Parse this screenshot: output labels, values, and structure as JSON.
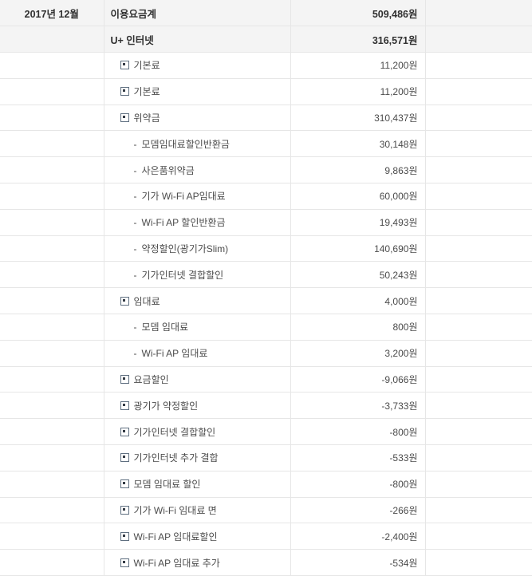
{
  "meta": {
    "period_label": "2017년 12월",
    "currency_suffix": "원"
  },
  "icons": {
    "tree_toggle": "expand-collapse-square",
    "dash": "-"
  },
  "colors": {
    "header_row_bg": "#f4f4f4",
    "row_bg": "#ffffff",
    "border": "#e6e6e6",
    "text": "#4b4b4b",
    "bold_text": "#303030",
    "tree_icon_border": "#5f6f80",
    "tree_icon_fill": "#333a44"
  },
  "table": {
    "columns": [
      "period",
      "item",
      "amount",
      "empty"
    ],
    "rows": [
      {
        "period": "2017년 12월",
        "label": "이용요금계",
        "value": "509,486원",
        "level": 0,
        "bold": true,
        "shaded": true
      },
      {
        "period": "",
        "label": "U+ 인터넷",
        "value": "316,571원",
        "level": 0,
        "bold": true,
        "shaded": true
      },
      {
        "period": "",
        "label": "기본료",
        "value": "11,200원",
        "level": 1,
        "bold": false,
        "shaded": false
      },
      {
        "period": "",
        "label": "기본료",
        "value": "11,200원",
        "level": 1,
        "bold": false,
        "shaded": false
      },
      {
        "period": "",
        "label": "위약금",
        "value": "310,437원",
        "level": 1,
        "bold": false,
        "shaded": false
      },
      {
        "period": "",
        "label": "모뎀임대료할인반환금",
        "value": "30,148원",
        "level": 2,
        "bold": false,
        "shaded": false
      },
      {
        "period": "",
        "label": "사은품위약금",
        "value": "9,863원",
        "level": 2,
        "bold": false,
        "shaded": false
      },
      {
        "period": "",
        "label": "기가 Wi-Fi AP임대료",
        "value": "60,000원",
        "level": 2,
        "bold": false,
        "shaded": false
      },
      {
        "period": "",
        "label": "Wi-Fi AP 할인반환금",
        "value": "19,493원",
        "level": 2,
        "bold": false,
        "shaded": false
      },
      {
        "period": "",
        "label": "약정할인(광기가Slim)",
        "value": "140,690원",
        "level": 2,
        "bold": false,
        "shaded": false
      },
      {
        "period": "",
        "label": "기가인터넷 결합할인",
        "value": "50,243원",
        "level": 2,
        "bold": false,
        "shaded": false
      },
      {
        "period": "",
        "label": "임대료",
        "value": "4,000원",
        "level": 1,
        "bold": false,
        "shaded": false
      },
      {
        "period": "",
        "label": "모뎀 임대료",
        "value": "800원",
        "level": 2,
        "bold": false,
        "shaded": false
      },
      {
        "period": "",
        "label": "Wi-Fi AP 임대료",
        "value": "3,200원",
        "level": 2,
        "bold": false,
        "shaded": false
      },
      {
        "period": "",
        "label": "요금할인",
        "value": "-9,066원",
        "level": 1,
        "bold": false,
        "shaded": false
      },
      {
        "period": "",
        "label": "광기가 약정할인",
        "value": "-3,733원",
        "level": 1,
        "bold": false,
        "shaded": false
      },
      {
        "period": "",
        "label": "기가인터넷 결합할인",
        "value": "-800원",
        "level": 1,
        "bold": false,
        "shaded": false
      },
      {
        "period": "",
        "label": "기가인터넷 추가 결합",
        "value": "-533원",
        "level": 1,
        "bold": false,
        "shaded": false
      },
      {
        "period": "",
        "label": "모뎀 임대료 할인",
        "value": "-800원",
        "level": 1,
        "bold": false,
        "shaded": false
      },
      {
        "period": "",
        "label": "기가 Wi-Fi 임대료 면",
        "value": "-266원",
        "level": 1,
        "bold": false,
        "shaded": false
      },
      {
        "period": "",
        "label": "Wi-Fi AP 임대료할인",
        "value": "-2,400원",
        "level": 1,
        "bold": false,
        "shaded": false
      },
      {
        "period": "",
        "label": "Wi-Fi AP 임대료 추가",
        "value": "-534원",
        "level": 1,
        "bold": false,
        "shaded": false
      }
    ]
  }
}
